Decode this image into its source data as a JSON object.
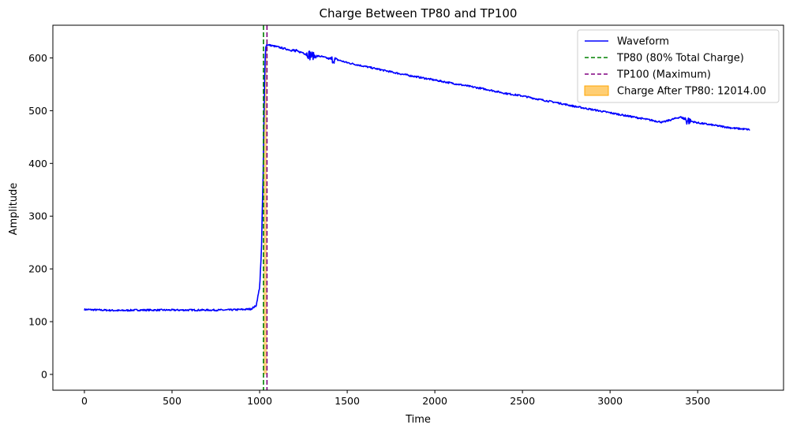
{
  "chart_data": {
    "type": "line",
    "title": "Charge Between TP80 and TP100",
    "xlabel": "Time",
    "ylabel": "Amplitude",
    "xlim": [
      -180,
      3990
    ],
    "ylim": [
      -30,
      662
    ],
    "xticks": [
      0,
      500,
      1000,
      1500,
      2000,
      2500,
      3000,
      3500
    ],
    "yticks": [
      0,
      100,
      200,
      300,
      400,
      500,
      600
    ],
    "grid": false,
    "legend_position": "top-right",
    "series": [
      {
        "name": "Waveform",
        "color": "#0000ff",
        "style": "solid",
        "x": [
          0,
          100,
          200,
          300,
          400,
          500,
          600,
          700,
          800,
          900,
          950,
          980,
          1000,
          1010,
          1020,
          1025,
          1030,
          1035,
          1040,
          1060,
          1100,
          1150,
          1200,
          1250,
          1300,
          1350,
          1400,
          1450,
          1500,
          1600,
          1700,
          1800,
          1900,
          2000,
          2100,
          2200,
          2300,
          2400,
          2500,
          2600,
          2700,
          2800,
          2900,
          3000,
          3100,
          3200,
          3300,
          3400,
          3450,
          3500,
          3600,
          3700,
          3800
        ],
        "y": [
          123,
          122,
          121,
          122,
          122,
          122,
          122,
          122,
          122,
          123,
          124,
          130,
          165,
          230,
          380,
          490,
          585,
          620,
          625,
          624,
          621,
          617,
          613,
          610,
          604,
          603,
          598,
          596,
          591,
          584,
          577,
          570,
          564,
          558,
          552,
          546,
          540,
          533,
          528,
          521,
          515,
          508,
          502,
          496,
          490,
          484,
          478,
          488,
          481,
          477,
          472,
          467,
          464
        ]
      },
      {
        "name": "TP80 (80% Total Charge)",
        "color": "#008000",
        "style": "dashed",
        "x_value": 1022
      },
      {
        "name": "TP100 (Maximum)",
        "color": "#800080",
        "style": "dashed",
        "x_value": 1042
      },
      {
        "name": "Charge After TP80: 12014.00",
        "color": "#ffa500",
        "style": "fill"
      }
    ]
  }
}
